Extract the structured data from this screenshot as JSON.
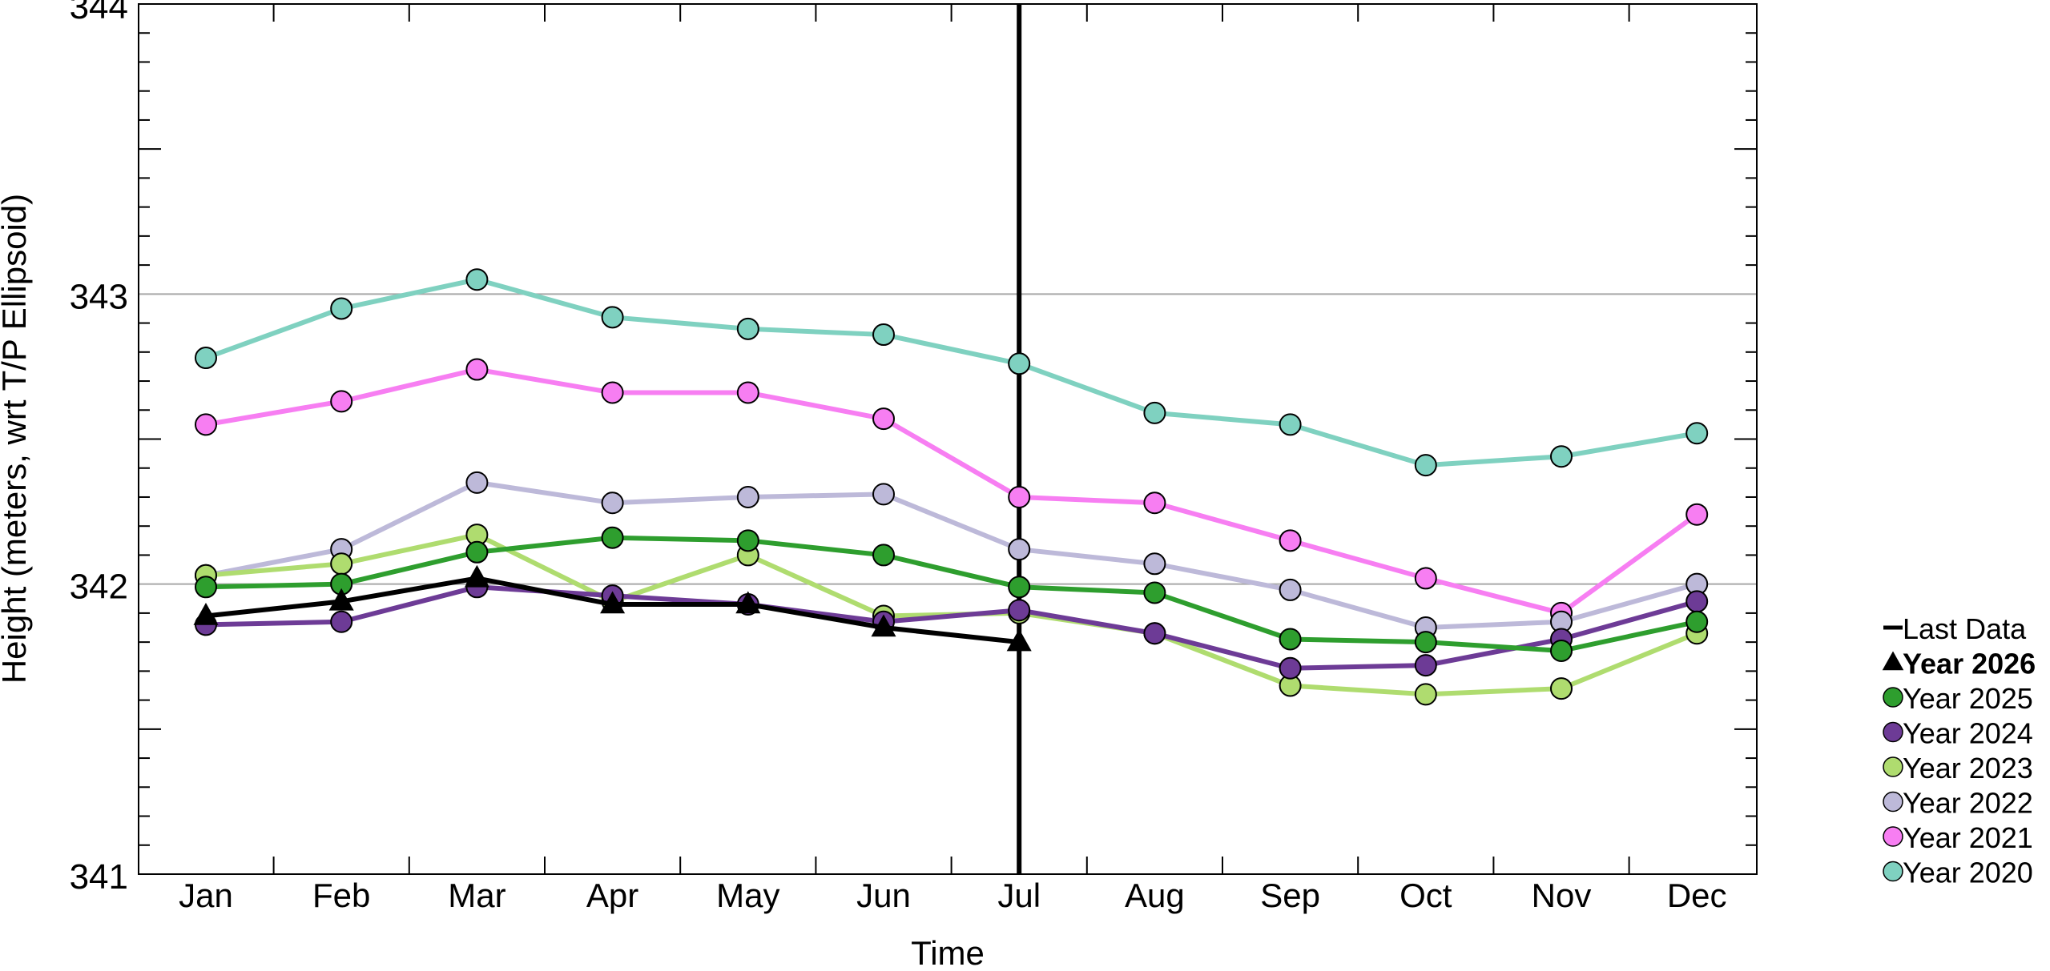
{
  "chart_data": {
    "type": "line",
    "title": "",
    "xlabel": "Time",
    "ylabel": "Height (meters, wrt T/P Ellipsoid)",
    "categories": [
      "Jan",
      "Feb",
      "Mar",
      "Apr",
      "May",
      "Jun",
      "Jul",
      "Aug",
      "Sep",
      "Oct",
      "Nov",
      "Dec"
    ],
    "ylim": [
      341,
      344
    ],
    "yticks": [
      "341",
      "342",
      "343",
      "344"
    ],
    "grid": "horizontal at 342 and 343",
    "legend_position": "right",
    "marker_month": "Jul",
    "last_data_label": "Last Data",
    "series": [
      {
        "name": "Year 2020",
        "color": "#7fd1c0",
        "marker": "circle",
        "bold": false,
        "values": [
          342.78,
          342.95,
          343.05,
          342.92,
          342.88,
          342.86,
          342.76,
          342.59,
          342.55,
          342.41,
          342.44,
          342.52
        ]
      },
      {
        "name": "Year 2021",
        "color": "#f77ef2",
        "marker": "circle",
        "bold": false,
        "values": [
          342.55,
          342.63,
          342.74,
          342.66,
          342.66,
          342.57,
          342.3,
          342.28,
          342.15,
          342.02,
          341.9,
          342.24
        ]
      },
      {
        "name": "Year 2022",
        "color": "#bdb9d9",
        "marker": "circle",
        "bold": false,
        "values": [
          342.03,
          342.12,
          342.35,
          342.28,
          342.3,
          342.31,
          342.12,
          342.07,
          341.98,
          341.85,
          341.87,
          342.0
        ]
      },
      {
        "name": "Year 2023",
        "color": "#afdc6f",
        "marker": "circle",
        "bold": false,
        "values": [
          342.03,
          342.07,
          342.17,
          341.94,
          342.1,
          341.89,
          341.9,
          341.83,
          341.65,
          341.62,
          341.64,
          341.83
        ]
      },
      {
        "name": "Year 2024",
        "color": "#6d3b96",
        "marker": "circle",
        "bold": false,
        "values": [
          341.86,
          341.87,
          341.99,
          341.96,
          341.93,
          341.87,
          341.91,
          341.83,
          341.71,
          341.72,
          341.81,
          341.94
        ]
      },
      {
        "name": "Year 2025",
        "color": "#2e9e2e",
        "marker": "circle",
        "bold": false,
        "values": [
          341.99,
          342.0,
          342.11,
          342.16,
          342.15,
          342.1,
          341.99,
          341.97,
          341.81,
          341.8,
          341.77,
          341.87
        ]
      },
      {
        "name": "Year 2026",
        "color": "#000000",
        "marker": "triangle",
        "bold": true,
        "values": [
          341.89,
          341.94,
          342.02,
          341.93,
          341.93,
          341.85,
          341.8,
          null,
          null,
          null,
          null,
          null
        ]
      }
    ]
  }
}
